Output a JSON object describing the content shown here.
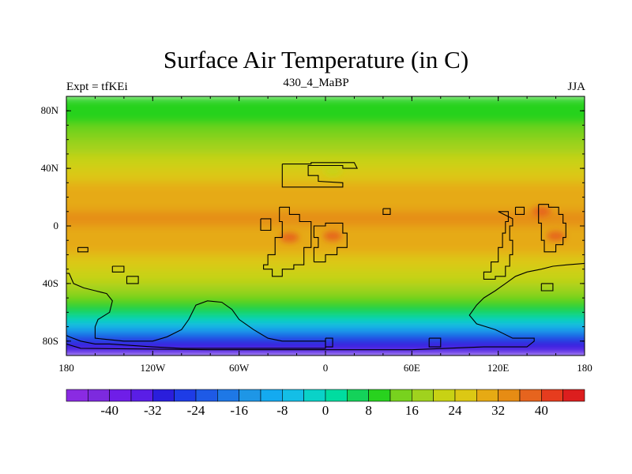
{
  "title": "Surface Air Temperature (in C)",
  "subtitle_left": "Expt = tfKEi",
  "subtitle_center": "430_4_MaBP",
  "subtitle_right": "JJA",
  "map": {
    "projection": "cylindrical-equidistant",
    "lon_range": [
      -180,
      180
    ],
    "lat_range": [
      -90,
      90
    ],
    "lat_ticks": [
      {
        "value": 80,
        "label": "80N"
      },
      {
        "value": 40,
        "label": "40N"
      },
      {
        "value": 0,
        "label": "0"
      },
      {
        "value": -40,
        "label": "40S"
      },
      {
        "value": -80,
        "label": "80S"
      }
    ],
    "lon_ticks": [
      {
        "value": -180,
        "label": "180"
      },
      {
        "value": -120,
        "label": "120W"
      },
      {
        "value": -60,
        "label": "60W"
      },
      {
        "value": 0,
        "label": "0"
      },
      {
        "value": 60,
        "label": "60E"
      },
      {
        "value": 120,
        "label": "120E"
      },
      {
        "value": 180,
        "label": "180"
      }
    ]
  },
  "colorbar": {
    "levels": [
      -44,
      -40,
      -36,
      -32,
      -28,
      -24,
      -20,
      -16,
      -12,
      -8,
      -4,
      0,
      4,
      8,
      12,
      16,
      20,
      24,
      28,
      32,
      36,
      40,
      44
    ],
    "labels": [
      "-40",
      "-32",
      "-24",
      "-16",
      "-8",
      "0",
      "8",
      "16",
      "24",
      "32",
      "40"
    ],
    "label_values": [
      -40,
      -32,
      -24,
      -16,
      -8,
      0,
      8,
      16,
      24,
      32,
      40
    ],
    "colors": [
      "#8a2be2",
      "#7d2ade",
      "#6f1ee8",
      "#5a1ee6",
      "#2a1edc",
      "#1e3ce6",
      "#1e5ae6",
      "#1e78e6",
      "#1e96e6",
      "#14aaf0",
      "#14bee6",
      "#0ad2c8",
      "#00dca0",
      "#14d25a",
      "#28d21e",
      "#78d21e",
      "#a0d21e",
      "#c8d214",
      "#dcc814",
      "#e6aa14",
      "#e68c14",
      "#e6641e",
      "#e63c1e",
      "#dc1e1e"
    ]
  },
  "chart_data": {
    "type": "heatmap",
    "title": "Surface Air Temperature (in C)",
    "units": "C",
    "x": "longitude",
    "y": "latitude",
    "xlim": [
      -180,
      180
    ],
    "ylim": [
      -90,
      90
    ],
    "zonal_mean_profile": [
      {
        "lat": 90,
        "value": 8
      },
      {
        "lat": 80,
        "value": 10
      },
      {
        "lat": 70,
        "value": 12
      },
      {
        "lat": 60,
        "value": 16
      },
      {
        "lat": 50,
        "value": 20
      },
      {
        "lat": 40,
        "value": 24
      },
      {
        "lat": 30,
        "value": 28
      },
      {
        "lat": 20,
        "value": 31
      },
      {
        "lat": 10,
        "value": 32
      },
      {
        "lat": 0,
        "value": 32
      },
      {
        "lat": -10,
        "value": 31
      },
      {
        "lat": -20,
        "value": 28
      },
      {
        "lat": -30,
        "value": 24
      },
      {
        "lat": -40,
        "value": 20
      },
      {
        "lat": -50,
        "value": 14
      },
      {
        "lat": -60,
        "value": 6
      },
      {
        "lat": -70,
        "value": -8
      },
      {
        "lat": -80,
        "value": -28
      },
      {
        "lat": -90,
        "value": -36
      }
    ],
    "hot_spots": [
      {
        "lon": -25,
        "lat": -8,
        "value": 36
      },
      {
        "lon": 5,
        "lat": -7,
        "value": 36
      },
      {
        "lon": 160,
        "lat": -7,
        "value": 36
      },
      {
        "lon": 150,
        "lat": 10,
        "value": 36
      },
      {
        "lon": 5,
        "lat": 38,
        "value": 20
      }
    ],
    "coastlines": [
      [
        [
          -30,
          43
        ],
        [
          -10,
          43
        ],
        [
          -10,
          44
        ],
        [
          20,
          44
        ],
        [
          22,
          40
        ],
        [
          12,
          40
        ],
        [
          12,
          42
        ],
        [
          -12,
          42
        ],
        [
          -12,
          35
        ],
        [
          -5,
          35
        ],
        [
          -5,
          31
        ],
        [
          12,
          30
        ],
        [
          12,
          27
        ],
        [
          -30,
          27
        ],
        [
          -30,
          43
        ]
      ],
      [
        [
          -32,
          13
        ],
        [
          -25,
          13
        ],
        [
          -25,
          8
        ],
        [
          -18,
          8
        ],
        [
          -18,
          3
        ],
        [
          -10,
          3
        ],
        [
          -10,
          -15
        ],
        [
          -15,
          -15
        ],
        [
          -15,
          -27
        ],
        [
          -22,
          -27
        ],
        [
          -22,
          -30
        ],
        [
          -30,
          -30
        ],
        [
          -30,
          -35
        ],
        [
          -37,
          -35
        ],
        [
          -37,
          -30
        ],
        [
          -43,
          -30
        ],
        [
          -43,
          -27
        ],
        [
          -40,
          -27
        ],
        [
          -40,
          -20
        ],
        [
          -35,
          -20
        ],
        [
          -35,
          -8
        ],
        [
          -30,
          -8
        ],
        [
          -30,
          3
        ],
        [
          -32,
          3
        ],
        [
          -32,
          13
        ]
      ],
      [
        [
          -8,
          -25
        ],
        [
          0,
          -25
        ],
        [
          0,
          -20
        ],
        [
          8,
          -20
        ],
        [
          8,
          -15
        ],
        [
          15,
          -15
        ],
        [
          15,
          -5
        ],
        [
          12,
          -5
        ],
        [
          12,
          2
        ],
        [
          0,
          2
        ],
        [
          0,
          0
        ],
        [
          -8,
          0
        ],
        [
          -8,
          -8
        ],
        [
          -5,
          -8
        ],
        [
          -5,
          -15
        ],
        [
          -8,
          -15
        ],
        [
          -8,
          -25
        ]
      ],
      [
        [
          -45,
          5
        ],
        [
          -38,
          5
        ],
        [
          -38,
          -3
        ],
        [
          -45,
          -3
        ],
        [
          -45,
          5
        ]
      ],
      [
        [
          40,
          12
        ],
        [
          45,
          12
        ],
        [
          45,
          8
        ],
        [
          40,
          8
        ],
        [
          40,
          12
        ]
      ],
      [
        [
          -172,
          -15
        ],
        [
          -165,
          -15
        ],
        [
          -165,
          -18
        ],
        [
          -172,
          -18
        ],
        [
          -172,
          -15
        ]
      ],
      [
        [
          -148,
          -28
        ],
        [
          -140,
          -28
        ],
        [
          -140,
          -32
        ],
        [
          -148,
          -32
        ],
        [
          -148,
          -28
        ]
      ],
      [
        [
          -138,
          -35
        ],
        [
          -130,
          -35
        ],
        [
          -130,
          -40
        ],
        [
          -138,
          -40
        ],
        [
          -138,
          -35
        ]
      ],
      [
        [
          120,
          10
        ],
        [
          127,
          10
        ],
        [
          127,
          3
        ],
        [
          125,
          3
        ],
        [
          125,
          -5
        ],
        [
          123,
          -5
        ],
        [
          123,
          -15
        ],
        [
          120,
          -15
        ],
        [
          120,
          -25
        ],
        [
          115,
          -25
        ],
        [
          115,
          -32
        ],
        [
          110,
          -32
        ],
        [
          110,
          -37
        ],
        [
          118,
          -37
        ],
        [
          118,
          -35
        ],
        [
          125,
          -35
        ],
        [
          125,
          -28
        ],
        [
          128,
          -28
        ],
        [
          128,
          -20
        ],
        [
          130,
          -20
        ],
        [
          130,
          -10
        ],
        [
          128,
          -10
        ],
        [
          128,
          0
        ],
        [
          130,
          0
        ],
        [
          130,
          5
        ],
        [
          120,
          10
        ]
      ],
      [
        [
          132,
          13
        ],
        [
          138,
          13
        ],
        [
          138,
          8
        ],
        [
          132,
          8
        ],
        [
          132,
          13
        ]
      ],
      [
        [
          148,
          15
        ],
        [
          155,
          15
        ],
        [
          155,
          13
        ],
        [
          162,
          13
        ],
        [
          162,
          8
        ],
        [
          165,
          8
        ],
        [
          165,
          2
        ],
        [
          167,
          2
        ],
        [
          167,
          -8
        ],
        [
          165,
          -8
        ],
        [
          165,
          -13
        ],
        [
          160,
          -13
        ],
        [
          160,
          -18
        ],
        [
          152,
          -18
        ],
        [
          152,
          -10
        ],
        [
          150,
          -10
        ],
        [
          150,
          2
        ],
        [
          148,
          2
        ],
        [
          148,
          15
        ]
      ],
      [
        [
          -180,
          -33
        ],
        [
          -178,
          -33
        ],
        [
          -175,
          -40
        ],
        [
          -168,
          -43
        ],
        [
          -160,
          -45
        ],
        [
          -152,
          -47
        ],
        [
          -148,
          -52
        ],
        [
          -150,
          -60
        ],
        [
          -158,
          -65
        ],
        [
          -160,
          -70
        ],
        [
          -160,
          -78
        ],
        [
          -140,
          -80
        ],
        [
          -120,
          -80
        ],
        [
          -110,
          -77
        ],
        [
          -100,
          -72
        ],
        [
          -95,
          -65
        ],
        [
          -90,
          -55
        ],
        [
          -82,
          -52
        ],
        [
          -72,
          -53
        ],
        [
          -65,
          -58
        ],
        [
          -60,
          -65
        ],
        [
          -50,
          -72
        ],
        [
          -40,
          -78
        ],
        [
          -30,
          -80
        ],
        [
          0,
          -80
        ],
        [
          0,
          -85
        ],
        [
          -100,
          -85
        ],
        [
          -120,
          -84
        ],
        [
          -150,
          -82
        ],
        [
          -160,
          -82
        ],
        [
          -170,
          -80
        ],
        [
          -178,
          -77
        ],
        [
          -180,
          -76
        ]
      ],
      [
        [
          -180,
          -82
        ],
        [
          -170,
          -85
        ],
        [
          -80,
          -86
        ],
        [
          60,
          -86
        ],
        [
          110,
          -84
        ],
        [
          140,
          -84
        ],
        [
          145,
          -80
        ],
        [
          145,
          -78
        ],
        [
          130,
          -78
        ],
        [
          118,
          -72
        ],
        [
          105,
          -68
        ],
        [
          100,
          -62
        ],
        [
          105,
          -55
        ],
        [
          110,
          -50
        ],
        [
          118,
          -45
        ],
        [
          125,
          -40
        ],
        [
          132,
          -35
        ],
        [
          140,
          -32
        ],
        [
          150,
          -30
        ],
        [
          158,
          -28
        ],
        [
          168,
          -27
        ],
        [
          180,
          -26
        ]
      ],
      [
        [
          72,
          -78
        ],
        [
          80,
          -78
        ],
        [
          80,
          -84
        ],
        [
          72,
          -84
        ],
        [
          72,
          -78
        ]
      ],
      [
        [
          0,
          -78
        ],
        [
          5,
          -78
        ],
        [
          5,
          -84
        ],
        [
          0,
          -84
        ],
        [
          0,
          -78
        ]
      ],
      [
        [
          150,
          -40
        ],
        [
          158,
          -40
        ],
        [
          158,
          -45
        ],
        [
          150,
          -45
        ],
        [
          150,
          -40
        ]
      ]
    ]
  }
}
